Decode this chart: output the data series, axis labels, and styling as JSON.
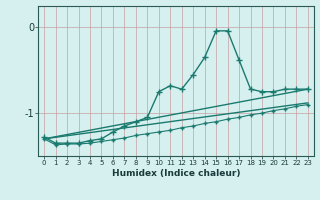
{
  "xlabel": "Humidex (Indice chaleur)",
  "bg_color": "#d6f0f0",
  "line_color": "#1a7a6e",
  "grid_color": "#c8a0a0",
  "xlim": [
    -0.5,
    23.5
  ],
  "ylim": [
    -1.5,
    0.25
  ],
  "yticks": [
    0,
    -1
  ],
  "xticks": [
    0,
    1,
    2,
    3,
    4,
    5,
    6,
    7,
    8,
    9,
    10,
    11,
    12,
    13,
    14,
    15,
    16,
    17,
    18,
    19,
    20,
    21,
    22,
    23
  ],
  "series": [
    {
      "x": [
        0,
        1,
        2,
        3,
        4,
        5,
        6,
        7,
        8,
        9,
        10,
        11,
        12,
        13,
        14,
        15,
        16,
        17,
        18,
        19,
        20,
        21,
        22,
        23
      ],
      "y": [
        -1.28,
        -1.35,
        -1.35,
        -1.35,
        -1.32,
        -1.3,
        -1.22,
        -1.15,
        -1.1,
        -1.05,
        -0.75,
        -0.68,
        -0.72,
        -0.55,
        -0.35,
        -0.04,
        -0.04,
        -0.38,
        -0.72,
        -0.75,
        -0.75,
        -0.72,
        -0.72,
        -0.72
      ],
      "marker": "+",
      "markersize": 4,
      "linewidth": 1.0,
      "zorder": 3
    },
    {
      "x": [
        0,
        1,
        2,
        3,
        4,
        5,
        6,
        7,
        8,
        9,
        10,
        11,
        12,
        13,
        14,
        15,
        16,
        17,
        18,
        19,
        20,
        21,
        22,
        23
      ],
      "y": [
        -1.3,
        -1.37,
        -1.36,
        -1.36,
        -1.35,
        -1.33,
        -1.31,
        -1.29,
        -1.26,
        -1.24,
        -1.22,
        -1.2,
        -1.17,
        -1.15,
        -1.12,
        -1.1,
        -1.07,
        -1.05,
        -1.02,
        -1.0,
        -0.97,
        -0.95,
        -0.92,
        -0.9
      ],
      "marker": "+",
      "markersize": 3,
      "linewidth": 0.8,
      "zorder": 2
    },
    {
      "x": [
        0,
        23
      ],
      "y": [
        -1.3,
        -0.88
      ],
      "marker": null,
      "markersize": 0,
      "linewidth": 1.0,
      "zorder": 1
    },
    {
      "x": [
        0,
        23
      ],
      "y": [
        -1.3,
        -0.72
      ],
      "marker": null,
      "markersize": 0,
      "linewidth": 1.0,
      "zorder": 1
    }
  ]
}
